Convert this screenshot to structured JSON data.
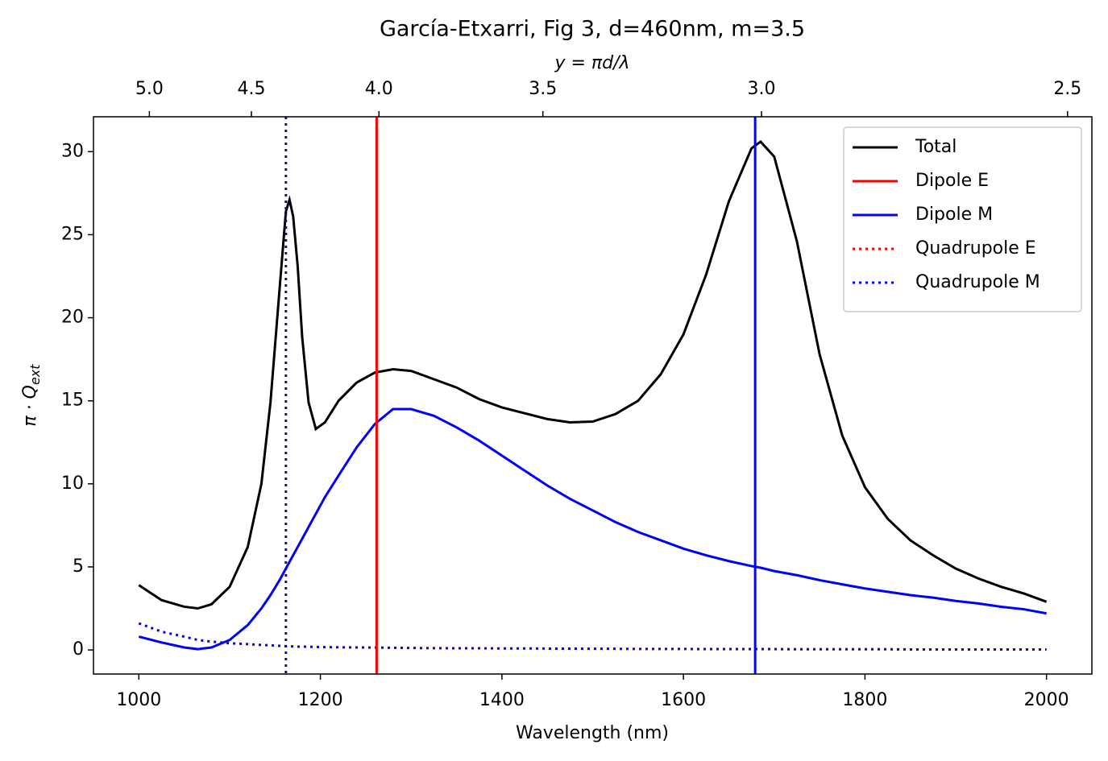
{
  "chart_data": {
    "type": "line",
    "title": "García-Etxarri, Fig 3, d=460nm, m=3.5",
    "xlabel": "Wavelength (nm)",
    "ylabel": "π · Q",
    "ylabel_sub": "ext",
    "x2label": "y = πd/λ",
    "x2_scale": "inverse",
    "x2_constant": 5058,
    "xlim": [
      950,
      2050
    ],
    "ylim": [
      -1.45,
      32.1
    ],
    "xticks": [
      1000,
      1200,
      1400,
      1600,
      1800,
      2000
    ],
    "yticks": [
      0,
      5,
      10,
      15,
      20,
      25,
      30
    ],
    "x2ticks": [
      {
        "value": 5,
        "label": "5.0"
      },
      4.5,
      {
        "value": 4,
        "label": "4.0"
      },
      3.5,
      {
        "value": 3,
        "label": "3.0"
      },
      2.5
    ],
    "legend": "upper right",
    "x": [
      1000,
      1025,
      1050,
      1065,
      1080,
      1100,
      1120,
      1135,
      1145,
      1155,
      1162,
      1166,
      1170,
      1175,
      1180,
      1187,
      1195,
      1205,
      1220,
      1240,
      1260,
      1280,
      1300,
      1325,
      1350,
      1375,
      1400,
      1425,
      1450,
      1475,
      1500,
      1525,
      1550,
      1575,
      1600,
      1625,
      1650,
      1675,
      1685,
      1700,
      1725,
      1750,
      1775,
      1800,
      1825,
      1850,
      1875,
      1900,
      1925,
      1950,
      1975,
      2000
    ],
    "series": [
      {
        "name": "Total",
        "color": "#000000",
        "style": "solid",
        "values": [
          3.9,
          3.0,
          2.6,
          2.5,
          2.75,
          3.8,
          6.2,
          10.0,
          14.9,
          21.7,
          26.4,
          27.1,
          26.1,
          23.1,
          18.8,
          14.9,
          13.3,
          13.7,
          15.0,
          16.1,
          16.7,
          16.9,
          16.8,
          16.3,
          15.8,
          15.1,
          14.6,
          14.25,
          13.9,
          13.7,
          13.75,
          14.2,
          15.0,
          16.6,
          19.0,
          22.6,
          27.0,
          30.2,
          30.6,
          29.7,
          24.6,
          17.8,
          12.9,
          9.8,
          7.9,
          6.6,
          5.7,
          4.9,
          4.3,
          3.8,
          3.4,
          2.9
        ]
      },
      {
        "name": "Dipole E",
        "color": "#ff0000",
        "style": "solid",
        "marker_x": 1262
      },
      {
        "name": "Dipole M",
        "color": "#0000ff",
        "style": "solid",
        "marker_x": 1679,
        "values": [
          0.8,
          0.45,
          0.15,
          0.05,
          0.15,
          0.6,
          1.5,
          2.5,
          3.3,
          4.2,
          4.9,
          5.3,
          5.7,
          6.2,
          6.7,
          7.4,
          8.2,
          9.2,
          10.5,
          12.2,
          13.6,
          14.5,
          14.5,
          14.1,
          13.4,
          12.6,
          11.7,
          10.8,
          9.9,
          9.1,
          8.4,
          7.7,
          7.1,
          6.6,
          6.1,
          5.7,
          5.35,
          5.05,
          4.95,
          4.75,
          4.5,
          4.2,
          3.95,
          3.7,
          3.5,
          3.3,
          3.15,
          2.95,
          2.8,
          2.6,
          2.45,
          2.2
        ]
      },
      {
        "name": "Quadrupole E",
        "color": "#ff0000",
        "style": "dotted"
      },
      {
        "name": "Quadrupole M",
        "color": "#0000ff",
        "style": "dotted",
        "marker_x": 1162,
        "values": [
          1.6,
          1.1,
          0.8,
          0.6,
          0.5,
          0.4,
          0.35,
          0.3,
          0.28,
          0.25,
          0.23,
          0.22,
          0.21,
          0.2,
          0.2,
          0.19,
          0.18,
          0.17,
          0.16,
          0.15,
          0.14,
          0.13,
          0.12,
          0.11,
          0.1,
          0.1,
          0.09,
          0.09,
          0.08,
          0.08,
          0.07,
          0.07,
          0.06,
          0.06,
          0.06,
          0.05,
          0.05,
          0.05,
          0.05,
          0.05,
          0.04,
          0.04,
          0.04,
          0.04,
          0.04,
          0.03,
          0.03,
          0.03,
          0.03,
          0.03,
          0.03,
          0.03
        ]
      }
    ]
  }
}
